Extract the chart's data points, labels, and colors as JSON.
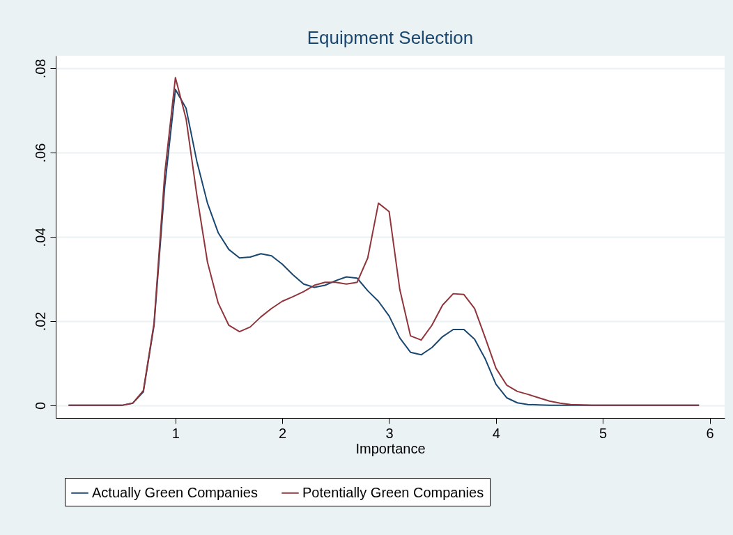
{
  "chart_data": {
    "type": "line",
    "title": "Equipment Selection",
    "xlabel": "Importance",
    "x": [
      0.0,
      0.1,
      0.2,
      0.3,
      0.4,
      0.5,
      0.6,
      0.7,
      0.8,
      0.9,
      1.0,
      1.1,
      1.2,
      1.3,
      1.4,
      1.5,
      1.6,
      1.7,
      1.8,
      1.9,
      2.0,
      2.1,
      2.2,
      2.3,
      2.4,
      2.5,
      2.6,
      2.7,
      2.8,
      2.9,
      3.0,
      3.1,
      3.2,
      3.3,
      3.4,
      3.5,
      3.6,
      3.7,
      3.8,
      3.9,
      4.0,
      4.1,
      4.2,
      4.3,
      4.4,
      4.5,
      4.6,
      4.7,
      4.8,
      4.9,
      5.0,
      5.1,
      5.2,
      5.3,
      5.4,
      5.5,
      5.6,
      5.7,
      5.8,
      5.9
    ],
    "series": [
      {
        "name": "Actually Green Companies",
        "color": "#1a476f",
        "values": [
          0,
          0,
          0,
          0,
          0,
          0,
          0.0005,
          0.0032,
          0.019,
          0.052,
          0.075,
          0.0705,
          0.058,
          0.048,
          0.041,
          0.037,
          0.035,
          0.0352,
          0.036,
          0.0355,
          0.0335,
          0.031,
          0.0288,
          0.028,
          0.0285,
          0.0296,
          0.0305,
          0.0302,
          0.0272,
          0.0247,
          0.0212,
          0.016,
          0.0126,
          0.012,
          0.0137,
          0.0163,
          0.018,
          0.018,
          0.0157,
          0.011,
          0.005,
          0.0018,
          0.0006,
          0.0002,
          0.0001,
          0,
          0,
          0,
          0,
          0,
          0,
          0,
          0,
          0,
          0,
          0,
          0,
          0,
          0,
          0
        ]
      },
      {
        "name": "Potentially Green Companies",
        "color": "#90353b",
        "values": [
          0,
          0,
          0,
          0,
          0,
          0,
          0.0005,
          0.0035,
          0.0195,
          0.055,
          0.0778,
          0.068,
          0.05,
          0.034,
          0.0243,
          0.019,
          0.0175,
          0.0186,
          0.021,
          0.023,
          0.0247,
          0.0258,
          0.027,
          0.0285,
          0.0292,
          0.0292,
          0.0288,
          0.0292,
          0.035,
          0.048,
          0.046,
          0.0275,
          0.0165,
          0.0155,
          0.019,
          0.0238,
          0.0265,
          0.0263,
          0.023,
          0.016,
          0.0088,
          0.0048,
          0.0033,
          0.0026,
          0.0018,
          0.001,
          0.0005,
          0.0002,
          0.0001,
          0,
          0,
          0,
          0,
          0,
          0,
          0,
          0,
          0,
          0,
          0
        ]
      }
    ],
    "xlim": [
      -0.12,
      6.14
    ],
    "xticks": [
      1,
      2,
      3,
      4,
      5,
      6
    ],
    "ylim": [
      -0.003,
      0.083
    ],
    "yticks": [
      {
        "value": 0,
        "label": "0"
      },
      {
        "value": 0.02,
        "label": ".02"
      },
      {
        "value": 0.04,
        "label": ".04"
      },
      {
        "value": 0.06,
        "label": ".06"
      },
      {
        "value": 0.08,
        "label": ".08"
      }
    ],
    "grid": "y",
    "legend": "bottom",
    "marker": "none",
    "line_style": "solid"
  }
}
